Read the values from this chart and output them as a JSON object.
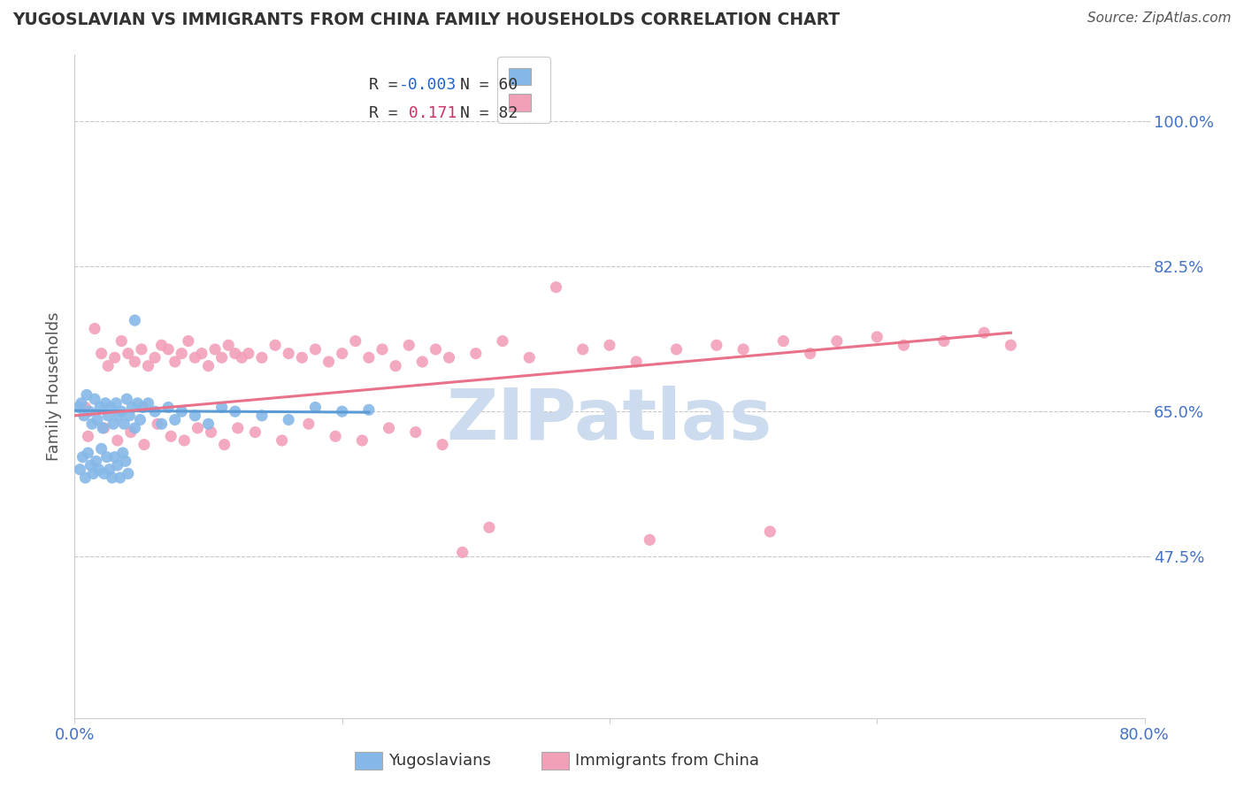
{
  "title": "YUGOSLAVIAN VS IMMIGRANTS FROM CHINA FAMILY HOUSEHOLDS CORRELATION CHART",
  "source_text": "Source: ZipAtlas.com",
  "ylabel": "Family Households",
  "x_min": 0.0,
  "x_max": 80.0,
  "y_min": 28.0,
  "y_max": 108.0,
  "y_ticks": [
    47.5,
    65.0,
    82.5,
    100.0
  ],
  "y_tick_labels": [
    "47.5%",
    "65.0%",
    "82.5%",
    "100.0%"
  ],
  "x_ticks": [
    0.0,
    20.0,
    40.0,
    60.0,
    80.0
  ],
  "x_tick_labels": [
    "0.0%",
    "",
    "",
    "",
    "80.0%"
  ],
  "blue_color": "#85b8e8",
  "pink_color": "#f2a0b8",
  "blue_line_color": "#5b9bd5",
  "pink_line_color": "#e8728a",
  "legend_R1": "-0.003",
  "legend_N1": "60",
  "legend_R2": "0.171",
  "legend_N2": "82",
  "legend_label1": "Yugoslavians",
  "legend_label2": "Immigrants from China",
  "watermark": "ZIPatlas",
  "watermark_color": "#ccdcee",
  "grid_color": "#c8c8c8",
  "title_color": "#333333",
  "axis_tick_color": "#4472c4",
  "blue_trend_x": [
    0.0,
    22.0
  ],
  "blue_trend_y": [
    65.1,
    64.9
  ],
  "pink_trend_x": [
    0.0,
    70.0
  ],
  "pink_trend_y": [
    64.5,
    74.5
  ],
  "blue_scatter_x": [
    0.3,
    0.5,
    0.7,
    0.9,
    1.1,
    1.3,
    1.5,
    1.7,
    1.9,
    2.1,
    2.3,
    2.5,
    2.7,
    2.9,
    3.1,
    3.3,
    3.5,
    3.7,
    3.9,
    4.1,
    4.3,
    4.5,
    4.7,
    4.9,
    5.1,
    5.5,
    6.0,
    6.5,
    7.0,
    7.5,
    8.0,
    9.0,
    10.0,
    11.0,
    12.0,
    14.0,
    16.0,
    18.0,
    20.0,
    22.0,
    0.4,
    0.6,
    0.8,
    1.0,
    1.2,
    1.4,
    1.6,
    1.8,
    2.0,
    2.2,
    2.4,
    2.6,
    2.8,
    3.0,
    3.2,
    3.4,
    3.6,
    3.8,
    4.0,
    4.5
  ],
  "blue_scatter_y": [
    65.5,
    66.0,
    64.5,
    67.0,
    65.0,
    63.5,
    66.5,
    64.0,
    65.5,
    63.0,
    66.0,
    64.5,
    65.5,
    63.5,
    66.0,
    64.5,
    65.0,
    63.5,
    66.5,
    64.5,
    65.5,
    63.0,
    66.0,
    64.0,
    65.5,
    66.0,
    65.0,
    63.5,
    65.5,
    64.0,
    65.0,
    64.5,
    63.5,
    65.5,
    65.0,
    64.5,
    64.0,
    65.5,
    65.0,
    65.2,
    58.0,
    59.5,
    57.0,
    60.0,
    58.5,
    57.5,
    59.0,
    58.0,
    60.5,
    57.5,
    59.5,
    58.0,
    57.0,
    59.5,
    58.5,
    57.0,
    60.0,
    59.0,
    57.5,
    76.0
  ],
  "pink_scatter_x": [
    0.8,
    1.5,
    2.0,
    2.5,
    3.0,
    3.5,
    4.0,
    4.5,
    5.0,
    5.5,
    6.0,
    6.5,
    7.0,
    7.5,
    8.0,
    8.5,
    9.0,
    9.5,
    10.0,
    10.5,
    11.0,
    11.5,
    12.0,
    12.5,
    13.0,
    14.0,
    15.0,
    16.0,
    17.0,
    18.0,
    19.0,
    20.0,
    21.0,
    22.0,
    23.0,
    24.0,
    25.0,
    26.0,
    27.0,
    28.0,
    30.0,
    32.0,
    34.0,
    38.0,
    40.0,
    42.0,
    45.0,
    48.0,
    50.0,
    53.0,
    55.0,
    57.0,
    60.0,
    62.0,
    65.0,
    68.0,
    70.0,
    1.0,
    2.2,
    3.2,
    4.2,
    5.2,
    6.2,
    7.2,
    8.2,
    9.2,
    10.2,
    11.2,
    12.2,
    13.5,
    15.5,
    17.5,
    19.5,
    21.5,
    23.5,
    25.5,
    27.5,
    29.0,
    31.0,
    36.0,
    43.0,
    52.0
  ],
  "pink_scatter_y": [
    65.5,
    75.0,
    72.0,
    70.5,
    71.5,
    73.5,
    72.0,
    71.0,
    72.5,
    70.5,
    71.5,
    73.0,
    72.5,
    71.0,
    72.0,
    73.5,
    71.5,
    72.0,
    70.5,
    72.5,
    71.5,
    73.0,
    72.0,
    71.5,
    72.0,
    71.5,
    73.0,
    72.0,
    71.5,
    72.5,
    71.0,
    72.0,
    73.5,
    71.5,
    72.5,
    70.5,
    73.0,
    71.0,
    72.5,
    71.5,
    72.0,
    73.5,
    71.5,
    72.5,
    73.0,
    71.0,
    72.5,
    73.0,
    72.5,
    73.5,
    72.0,
    73.5,
    74.0,
    73.0,
    73.5,
    74.5,
    73.0,
    62.0,
    63.0,
    61.5,
    62.5,
    61.0,
    63.5,
    62.0,
    61.5,
    63.0,
    62.5,
    61.0,
    63.0,
    62.5,
    61.5,
    63.5,
    62.0,
    61.5,
    63.0,
    62.5,
    61.0,
    48.0,
    51.0,
    80.0,
    49.5,
    50.5
  ]
}
